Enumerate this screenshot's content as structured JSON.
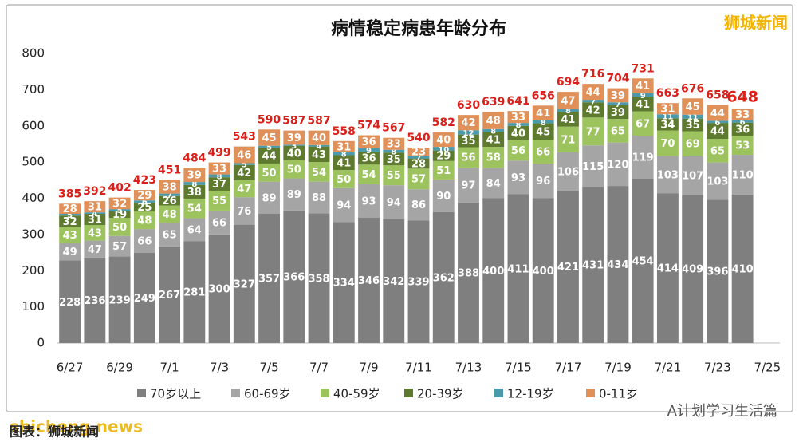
{
  "chart_data": {
    "type": "stacked-bar",
    "title": "病情稳定病患年龄分布",
    "categories": [
      "6/27",
      null,
      "6/29",
      null,
      "7/1",
      null,
      "7/3",
      null,
      "7/5",
      null,
      "7/7",
      null,
      "7/9",
      null,
      "7/11",
      null,
      "7/13",
      null,
      "7/15",
      null,
      "7/17",
      null,
      "7/19",
      null,
      "7/21",
      null,
      "7/23",
      null,
      "7/25"
    ],
    "series": [
      {
        "name": "70岁以上",
        "color": "#7f7f7f",
        "values": [
          228,
          236,
          239,
          249,
          267,
          281,
          300,
          327,
          357,
          366,
          358,
          334,
          346,
          342,
          339,
          362,
          388,
          400,
          411,
          400,
          421,
          431,
          434,
          454,
          414,
          409,
          396,
          410,
          null
        ]
      },
      {
        "name": "60-69岁",
        "color": "#a5a5a5",
        "values": [
          49,
          47,
          57,
          66,
          65,
          64,
          66,
          76,
          89,
          89,
          88,
          94,
          93,
          94,
          86,
          90,
          97,
          84,
          93,
          96,
          106,
          115,
          120,
          119,
          103,
          107,
          103,
          110,
          null
        ]
      },
      {
        "name": "40-59岁",
        "color": "#9dc35e",
        "values": [
          43,
          43,
          50,
          48,
          48,
          54,
          55,
          47,
          50,
          50,
          54,
          50,
          54,
          55,
          57,
          51,
          56,
          58,
          56,
          66,
          71,
          77,
          65,
          67,
          70,
          69,
          65,
          53,
          null
        ]
      },
      {
        "name": "20-39岁",
        "color": "#5e7a2e",
        "values": [
          32,
          31,
          19,
          25,
          26,
          38,
          37,
          42,
          44,
          40,
          43,
          41,
          36,
          35,
          28,
          29,
          35,
          41,
          40,
          45,
          41,
          42,
          39,
          41,
          34,
          35,
          44,
          36,
          null
        ]
      },
      {
        "name": "12-19岁",
        "color": "#4a9aab",
        "values": [
          5,
          4,
          5,
          6,
          7,
          8,
          8,
          5,
          5,
          3,
          4,
          8,
          9,
          8,
          7,
          10,
          12,
          8,
          8,
          8,
          8,
          7,
          7,
          9,
          11,
          11,
          6,
          6,
          null
        ]
      },
      {
        "name": "0-11岁",
        "color": "#e0915a",
        "values": [
          28,
          31,
          32,
          29,
          38,
          39,
          33,
          46,
          45,
          39,
          40,
          31,
          36,
          33,
          23,
          40,
          42,
          48,
          33,
          41,
          47,
          44,
          39,
          41,
          31,
          45,
          44,
          33,
          null
        ]
      }
    ],
    "totals": [
      385,
      392,
      402,
      423,
      451,
      484,
      499,
      543,
      590,
      587,
      587,
      558,
      574,
      567,
      540,
      582,
      630,
      639,
      641,
      656,
      694,
      716,
      704,
      731,
      663,
      676,
      658,
      648,
      null
    ],
    "ylim": [
      0,
      800
    ],
    "yticks": [
      0,
      100,
      200,
      300,
      400,
      500,
      600,
      700,
      800
    ],
    "grid": false,
    "source": "图表：狮城新闻",
    "watermarks": [
      "狮城新闻",
      "shicheng.news",
      "A计划学习生活篇"
    ]
  }
}
